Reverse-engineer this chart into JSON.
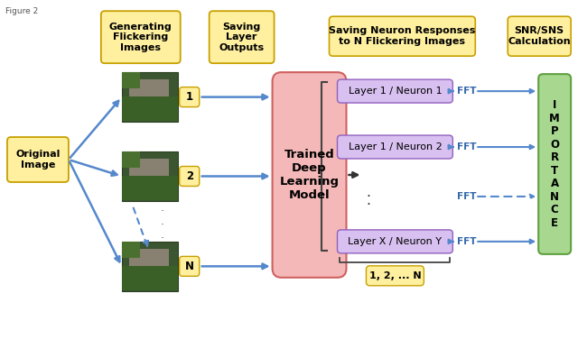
{
  "bg_color": "#ffffff",
  "yellow_fc": "#FFF0A0",
  "yellow_ec": "#C8A000",
  "pink_fc": "#F5B8B8",
  "pink_ec": "#D06060",
  "purple_fc": "#D8C0F0",
  "purple_ec": "#9060C0",
  "green_fc": "#A8D890",
  "green_ec": "#60A040",
  "arrow_blue": "#5588CC",
  "arrow_dark": "#3366AA",
  "bracket_color": "#444444",
  "label_original": "Original\nImage",
  "label_gen": "Generating\nFlickering\nImages",
  "label_saving_layer": "Saving\nLayer\nOutputs",
  "label_trained": "Trained\nDeep\nLearning\nModel",
  "label_saving_neuron": "Saving Neuron Responses\nto N Flickering Images",
  "label_snr": "SNR/SNS\nCalculation",
  "label_importance": "I\nM\nP\nO\nR\nT\nA\nN\nC\nE",
  "label_neuron1": "Layer 1 / Neuron 1",
  "label_neuron2": "Layer 1 / Neuron 2",
  "label_neuronXY": "Layer X / Neuron Y",
  "label_12N": "1, 2, ... N",
  "num_labels": [
    "1",
    "2",
    "N"
  ],
  "img_colors": [
    [
      "#2a4a20",
      "#3a6030",
      "#4a7040",
      "#2a3a1a",
      "#5a8050"
    ],
    [
      "#304828",
      "#405838",
      "#506848",
      "#283820",
      "#607858"
    ],
    [
      "#283818",
      "#384828",
      "#485838",
      "#202810",
      "#586848"
    ]
  ]
}
